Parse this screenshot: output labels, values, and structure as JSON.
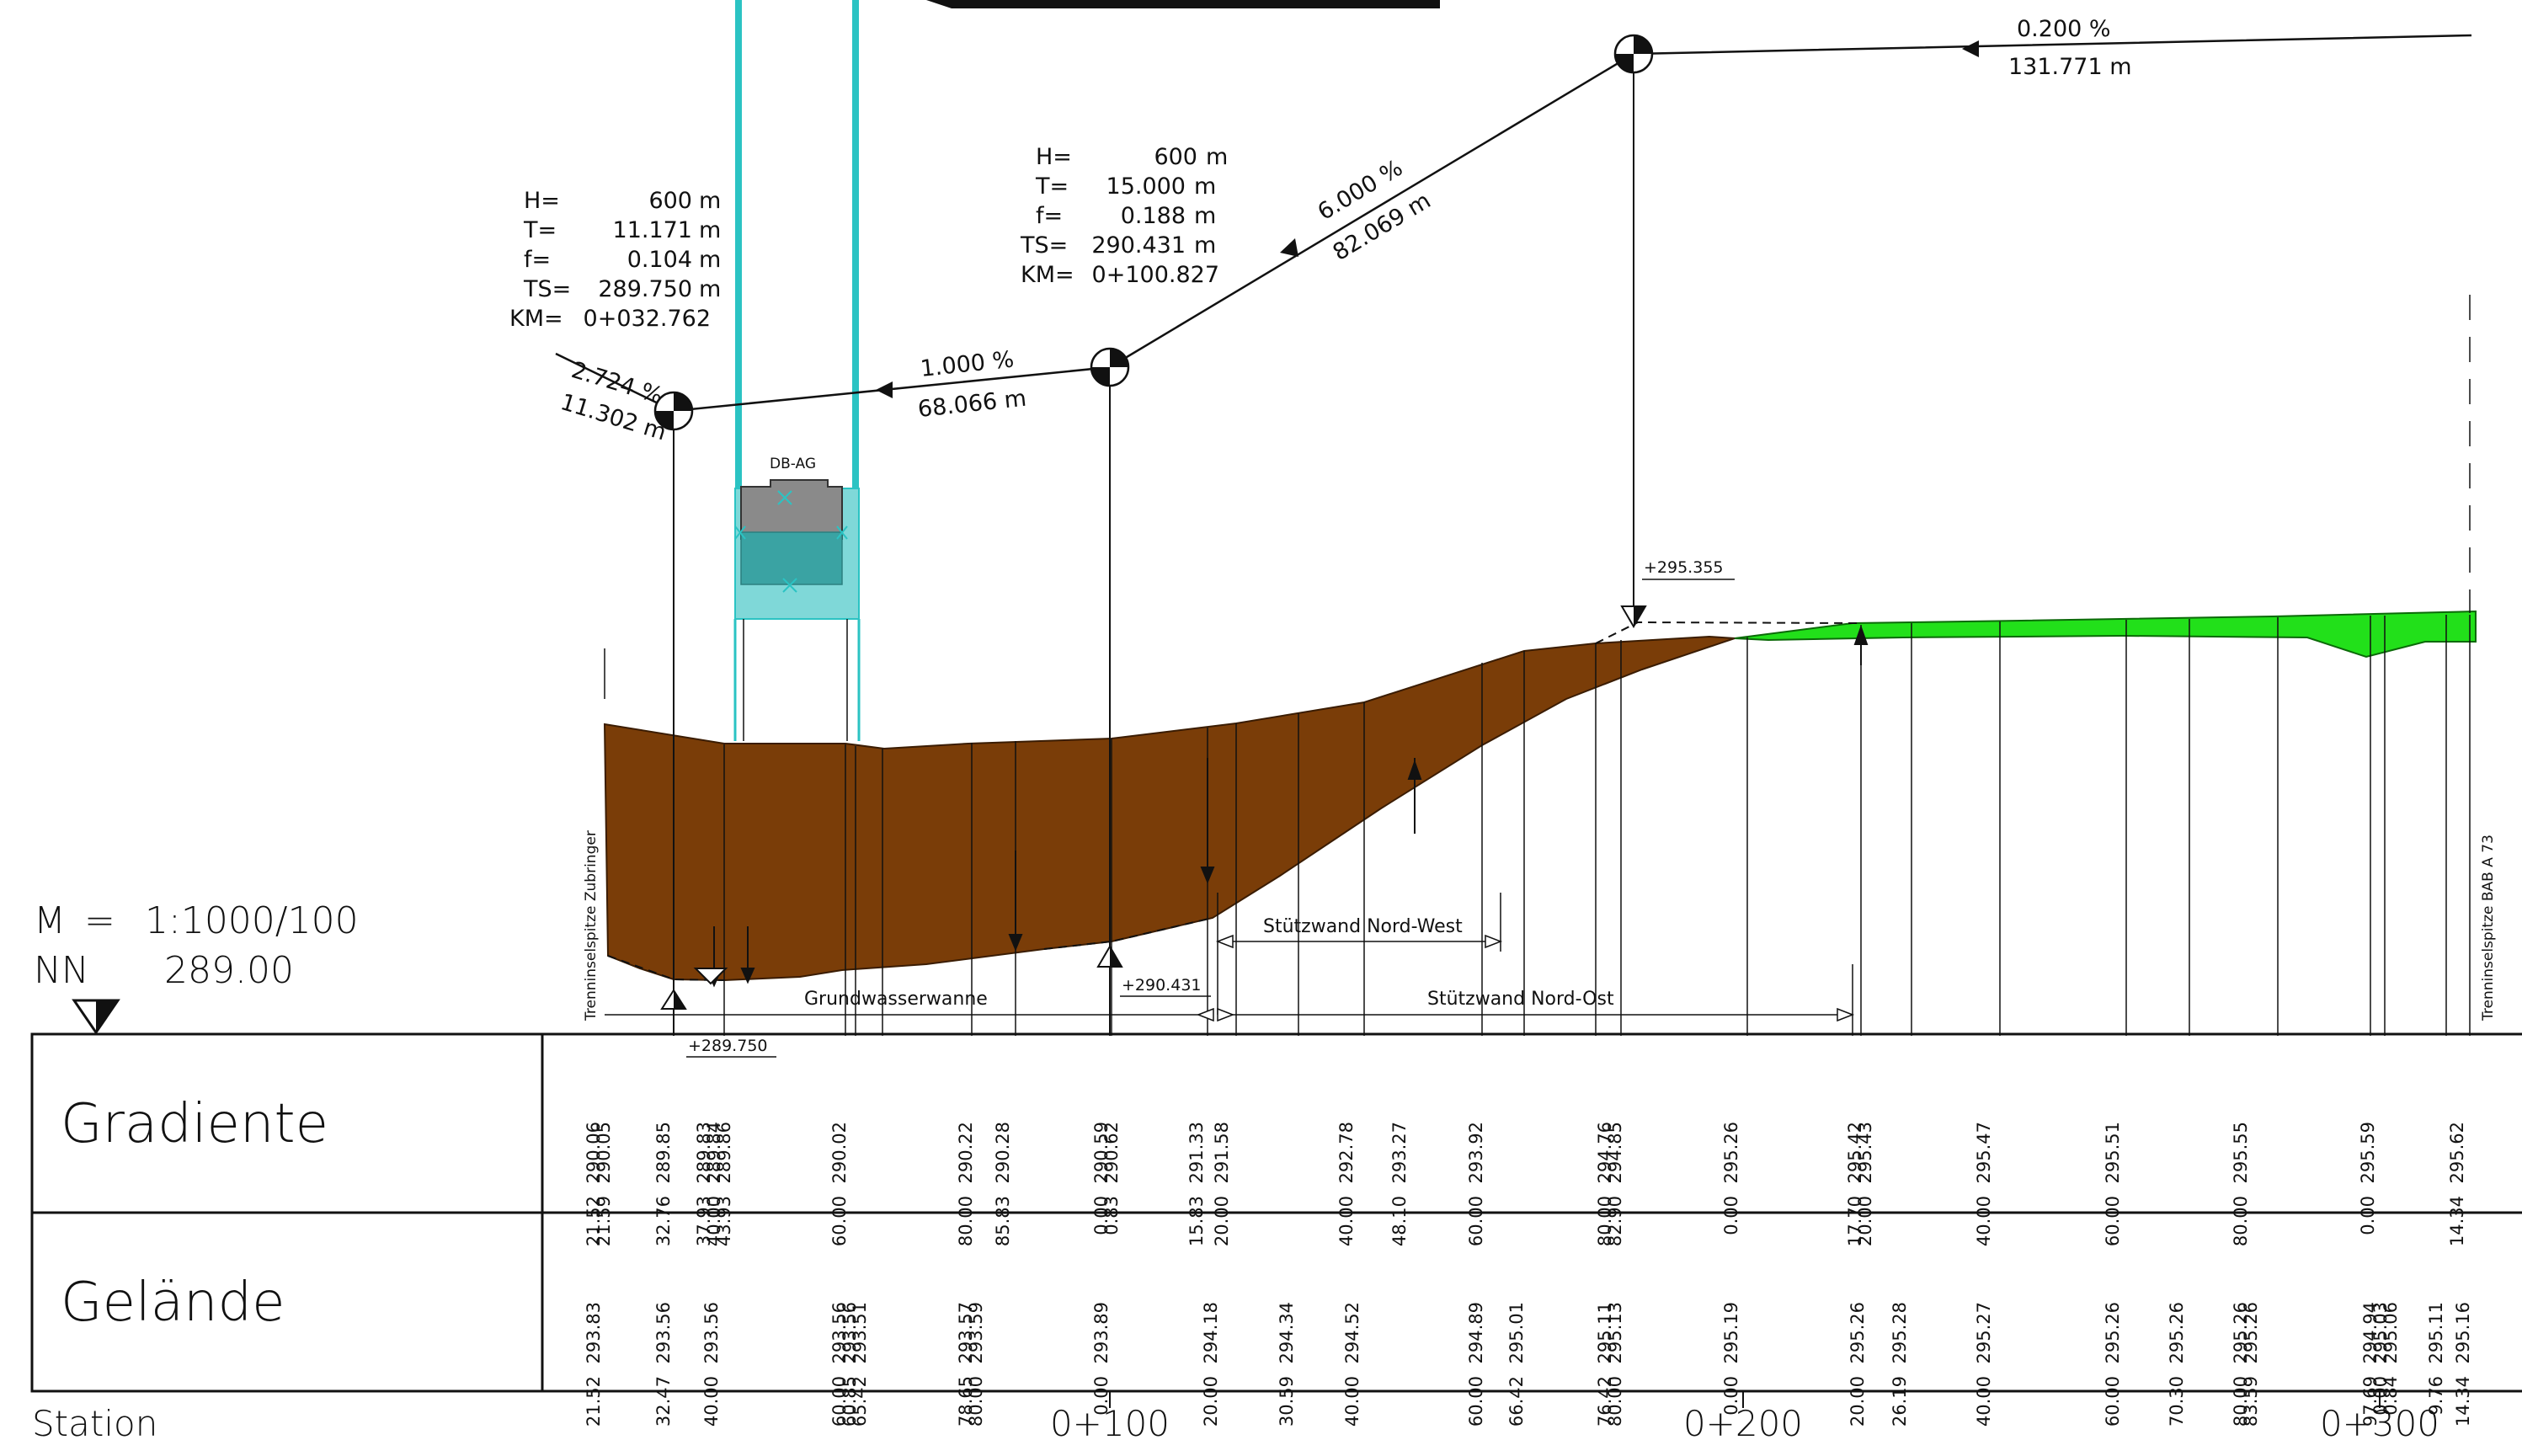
{
  "scale": {
    "m_label": "M",
    "m_eq": "=",
    "m_value": "1:1000/100",
    "nn_label": "NN",
    "nn_value": "289.00"
  },
  "rows": {
    "gradiente": "Gradiente",
    "gelaende": "Gelände",
    "station": "Station"
  },
  "station_marks": [
    "0+100",
    "0+200",
    "0+300"
  ],
  "curves": [
    {
      "lines": [
        [
          "H=",
          "600",
          "m"
        ],
        [
          "T=",
          "11.171",
          "m"
        ],
        [
          "f=",
          "0.104",
          "m"
        ],
        [
          "TS=",
          "289.750",
          "m"
        ],
        [
          "KM=",
          "0+032.762",
          ""
        ]
      ]
    },
    {
      "lines": [
        [
          "H=",
          "600",
          "m"
        ],
        [
          "T=",
          "15.000",
          "m"
        ],
        [
          "f=",
          "0.188",
          "m"
        ],
        [
          "TS=",
          "290.431",
          "m"
        ],
        [
          "KM=",
          "0+100.827",
          ""
        ]
      ]
    }
  ],
  "grades": [
    {
      "pct": "2.724 %",
      "len": "11.302 m"
    },
    {
      "pct": "1.000 %",
      "len": "68.066 m"
    },
    {
      "pct": "6.000 %",
      "len": "82.069 m"
    },
    {
      "pct": "0.200 %",
      "len": "131.771 m"
    }
  ],
  "elev_labels": [
    "+289.750",
    "+290.431",
    "+295.355"
  ],
  "structure_label": "DB-AG",
  "notes": {
    "left_vertical": "Trenninselspitze Zubringer",
    "right_vertical": "Trenninselspitze BAB A 73",
    "grundwasserwanne": "Grundwasserwanne",
    "nordwest": "Stützwand Nord-West",
    "nordost": "Stützwand Nord-Ost"
  },
  "gradiente_cols": [
    {
      "elev": [
        "290.06",
        "290.05"
      ],
      "sta": [
        "21.52",
        "21.59"
      ]
    },
    {
      "elev": [
        "289.85"
      ],
      "sta": [
        "32.76"
      ]
    },
    {
      "elev": [
        "289.83",
        "289.84",
        "289.86"
      ],
      "sta": [
        "37.93",
        "40.00",
        "43.93"
      ]
    },
    {
      "elev": [
        "290.02"
      ],
      "sta": [
        "60.00"
      ]
    },
    {
      "elev": [
        "290.22"
      ],
      "sta": [
        "80.00"
      ]
    },
    {
      "elev": [
        "290.28"
      ],
      "sta": [
        "85.83"
      ]
    },
    {
      "elev": [
        "290.59",
        "290.62"
      ],
      "sta": [
        "0.00",
        "0.83"
      ]
    },
    {
      "elev": [
        "291.33"
      ],
      "sta": [
        "15.83"
      ]
    },
    {
      "elev": [
        "291.58"
      ],
      "sta": [
        "20.00"
      ]
    },
    {
      "elev": [
        "292.78"
      ],
      "sta": [
        "40.00"
      ]
    },
    {
      "elev": [
        "293.27"
      ],
      "sta": [
        "48.10"
      ]
    },
    {
      "elev": [
        "293.92"
      ],
      "sta": [
        "60.00"
      ]
    },
    {
      "elev": [
        "294.76",
        "294.85"
      ],
      "sta": [
        "80.00",
        "82.90"
      ]
    },
    {
      "elev": [
        "295.26"
      ],
      "sta": [
        "0.00"
      ]
    },
    {
      "elev": [
        "295.42",
        "295.43"
      ],
      "sta": [
        "17.70",
        "20.00"
      ]
    },
    {
      "elev": [
        "295.47"
      ],
      "sta": [
        "40.00"
      ]
    },
    {
      "elev": [
        "295.51"
      ],
      "sta": [
        "60.00"
      ]
    },
    {
      "elev": [
        "295.55"
      ],
      "sta": [
        "80.00"
      ]
    },
    {
      "elev": [
        "295.59"
      ],
      "sta": [
        "0.00"
      ]
    },
    {
      "elev": [
        "295.62"
      ],
      "sta": [
        "14.34"
      ]
    }
  ],
  "gelaende_cols": [
    {
      "elev": [
        "293.83"
      ],
      "sta": [
        "21.52"
      ]
    },
    {
      "elev": [
        "293.56"
      ],
      "sta": [
        "32.47"
      ]
    },
    {
      "elev": [
        "293.56"
      ],
      "sta": [
        "40.00"
      ]
    },
    {
      "elev": [
        "293.56",
        "293.56",
        "293.51"
      ],
      "sta": [
        "60.00",
        "60.85",
        "65.42"
      ]
    },
    {
      "elev": [
        "293.57",
        "293.59"
      ],
      "sta": [
        "78.65",
        "80.00"
      ]
    },
    {
      "elev": [
        "293.89"
      ],
      "sta": [
        "0.00"
      ]
    },
    {
      "elev": [
        "294.18"
      ],
      "sta": [
        "20.00"
      ]
    },
    {
      "elev": [
        "294.34"
      ],
      "sta": [
        "30.59"
      ]
    },
    {
      "elev": [
        "294.52"
      ],
      "sta": [
        "40.00"
      ]
    },
    {
      "elev": [
        "294.89"
      ],
      "sta": [
        "60.00"
      ]
    },
    {
      "elev": [
        "295.01"
      ],
      "sta": [
        "66.42"
      ]
    },
    {
      "elev": [
        "295.11",
        "295.13"
      ],
      "sta": [
        "76.42",
        "80.00"
      ]
    },
    {
      "elev": [
        "295.19"
      ],
      "sta": [
        "0.00"
      ]
    },
    {
      "elev": [
        "295.26"
      ],
      "sta": [
        "20.00"
      ]
    },
    {
      "elev": [
        "295.28"
      ],
      "sta": [
        "26.19"
      ]
    },
    {
      "elev": [
        "295.27"
      ],
      "sta": [
        "40.00"
      ]
    },
    {
      "elev": [
        "295.26"
      ],
      "sta": [
        "60.00"
      ]
    },
    {
      "elev": [
        "295.26"
      ],
      "sta": [
        "70.30"
      ]
    },
    {
      "elev": [
        "295.26",
        "295.26"
      ],
      "sta": [
        "80.00",
        "83.59"
      ]
    },
    {
      "elev": [
        "294.94",
        "295.03",
        "295.06"
      ],
      "sta": [
        "97.69",
        "0.00",
        "0.84"
      ]
    },
    {
      "elev": [
        "295.11"
      ],
      "sta": [
        "9.76"
      ]
    },
    {
      "elev": [
        "295.16"
      ],
      "sta": [
        "14.34"
      ]
    }
  ],
  "colors": {
    "earth": "#7a3d08",
    "cut": "#22e01a",
    "cyan": "#2bc3c3",
    "ink": "#111111"
  }
}
